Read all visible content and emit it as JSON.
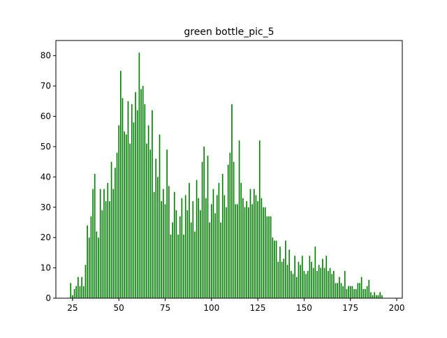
{
  "chart_data": {
    "type": "bar",
    "title": "green bottle_pic_5",
    "xlabel": "",
    "ylabel": "",
    "xlim": [
      16,
      203
    ],
    "ylim": [
      0,
      85
    ],
    "xticks": [
      25,
      50,
      75,
      100,
      125,
      150,
      175,
      200
    ],
    "yticks": [
      0,
      10,
      20,
      30,
      40,
      50,
      60,
      70,
      80
    ],
    "grid": false,
    "bar_color": "#008000",
    "x": [
      24,
      25,
      26,
      27,
      28,
      29,
      30,
      31,
      32,
      33,
      34,
      35,
      36,
      37,
      38,
      39,
      40,
      41,
      42,
      43,
      44,
      45,
      46,
      47,
      48,
      49,
      50,
      51,
      52,
      53,
      54,
      55,
      56,
      57,
      58,
      59,
      60,
      61,
      62,
      63,
      64,
      65,
      66,
      67,
      68,
      69,
      70,
      71,
      72,
      73,
      74,
      75,
      76,
      77,
      78,
      79,
      80,
      81,
      82,
      83,
      84,
      85,
      86,
      87,
      88,
      89,
      90,
      91,
      92,
      93,
      94,
      95,
      96,
      97,
      98,
      99,
      100,
      101,
      102,
      103,
      104,
      105,
      106,
      107,
      108,
      109,
      110,
      111,
      112,
      113,
      114,
      115,
      116,
      117,
      118,
      119,
      120,
      121,
      122,
      123,
      124,
      125,
      126,
      127,
      128,
      129,
      130,
      131,
      132,
      133,
      134,
      135,
      136,
      137,
      138,
      139,
      140,
      141,
      142,
      143,
      144,
      145,
      146,
      147,
      148,
      149,
      150,
      151,
      152,
      153,
      154,
      155,
      156,
      157,
      158,
      159,
      160,
      161,
      162,
      163,
      164,
      165,
      166,
      167,
      168,
      169,
      170,
      171,
      172,
      173,
      174,
      175,
      176,
      177,
      178,
      179,
      180,
      181,
      182,
      183,
      184,
      185,
      186,
      187,
      188,
      189,
      190,
      191,
      192
    ],
    "values": [
      5,
      1,
      3,
      4,
      7,
      4,
      7,
      4,
      11,
      24,
      20,
      27,
      36,
      41,
      22,
      20,
      36,
      29,
      36,
      32,
      38,
      32,
      45,
      36,
      43,
      48,
      57,
      75,
      66,
      55,
      54,
      65,
      51,
      64,
      58,
      68,
      62,
      81,
      69,
      70,
      64,
      51,
      57,
      49,
      62,
      35,
      46,
      40,
      54,
      32,
      36,
      31,
      49,
      37,
      21,
      25,
      35,
      29,
      21,
      27,
      33,
      21,
      34,
      29,
      38,
      25,
      32,
      22,
      39,
      33,
      29,
      45,
      50,
      33,
      47,
      25,
      31,
      36,
      28,
      34,
      38,
      25,
      41,
      34,
      30,
      44,
      48,
      64,
      45,
      31,
      31,
      52,
      38,
      33,
      30,
      32,
      30,
      36,
      31,
      36,
      34,
      32,
      52,
      33,
      30,
      30,
      27,
      27,
      27,
      20,
      19,
      19,
      12,
      17,
      12,
      13,
      19,
      11,
      16,
      9,
      8,
      14,
      7,
      12,
      11,
      14,
      9,
      8,
      9,
      14,
      12,
      10,
      17,
      9,
      11,
      10,
      13,
      10,
      14,
      9,
      10,
      8,
      9,
      5,
      5,
      7,
      5,
      4,
      9,
      3,
      4,
      4,
      4,
      3,
      3,
      5,
      5,
      7,
      3,
      3,
      4,
      6,
      2,
      1,
      2,
      1,
      1,
      2,
      1
    ]
  }
}
